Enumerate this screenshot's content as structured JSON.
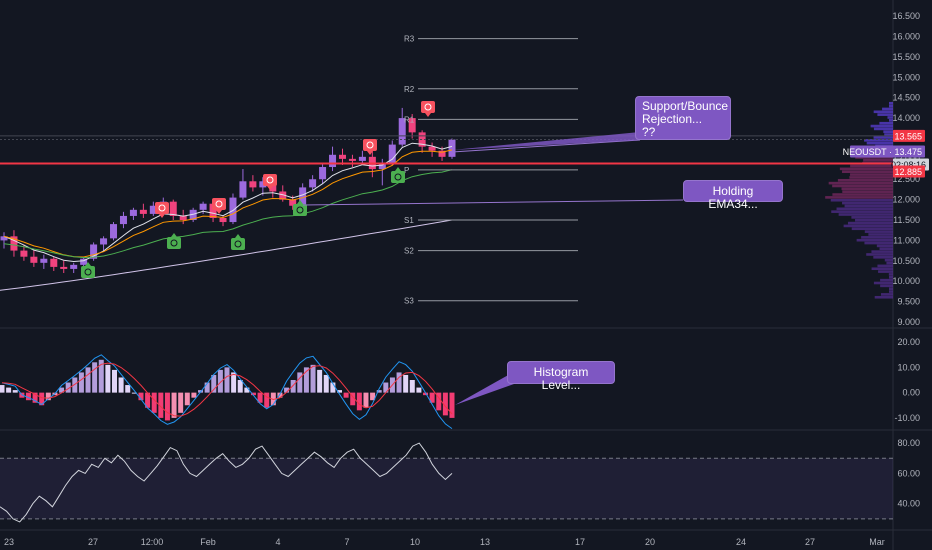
{
  "chart_data": {
    "type": "candlestick",
    "symbol": "NEOUSDT",
    "price_axis": {
      "ticks": [
        "16.500",
        "16.000",
        "15.500",
        "15.000",
        "14.500",
        "14.000",
        "13.500",
        "13.000",
        "12.500",
        "12.000",
        "11.500",
        "11.000",
        "10.500",
        "10.000",
        "9.500",
        "9.000"
      ],
      "range": [
        8.9,
        16.75
      ]
    },
    "price_labels": {
      "upper": "13.565",
      "symbol_tag": "NEOUSDT · 13.475",
      "countdown": "02:08:16",
      "lower": "12.885"
    },
    "time_axis": {
      "labels": [
        "23",
        "27",
        "12:00",
        "Feb",
        "4",
        "7",
        "10",
        "13",
        "17",
        "20",
        "24",
        "27",
        "Mar"
      ]
    },
    "pivot_levels": [
      {
        "label": "R3",
        "value": 15.95
      },
      {
        "label": "R2",
        "value": 14.72
      },
      {
        "label": "R1",
        "value": 13.97
      },
      {
        "label": "P",
        "value": 12.73
      },
      {
        "label": "S1",
        "value": 11.5
      },
      {
        "label": "S2",
        "value": 10.75
      },
      {
        "label": "S3",
        "value": 9.52
      }
    ],
    "support_line": 12.885,
    "resistance_line": 13.565,
    "candles": [
      {
        "o": 11.0,
        "h": 11.2,
        "l": 10.8,
        "c": 11.1
      },
      {
        "o": 11.1,
        "h": 11.25,
        "l": 10.6,
        "c": 10.75
      },
      {
        "o": 10.75,
        "h": 10.9,
        "l": 10.5,
        "c": 10.6
      },
      {
        "o": 10.6,
        "h": 10.75,
        "l": 10.35,
        "c": 10.45
      },
      {
        "o": 10.45,
        "h": 10.65,
        "l": 10.3,
        "c": 10.55
      },
      {
        "o": 10.55,
        "h": 10.6,
        "l": 10.25,
        "c": 10.35
      },
      {
        "o": 10.35,
        "h": 10.5,
        "l": 10.2,
        "c": 10.3
      },
      {
        "o": 10.3,
        "h": 10.45,
        "l": 10.2,
        "c": 10.4
      },
      {
        "o": 10.4,
        "h": 10.6,
        "l": 10.35,
        "c": 10.55
      },
      {
        "o": 10.55,
        "h": 10.95,
        "l": 10.5,
        "c": 10.9
      },
      {
        "o": 10.9,
        "h": 11.1,
        "l": 10.75,
        "c": 11.05
      },
      {
        "o": 11.05,
        "h": 11.45,
        "l": 11.0,
        "c": 11.4
      },
      {
        "o": 11.4,
        "h": 11.7,
        "l": 11.3,
        "c": 11.6
      },
      {
        "o": 11.6,
        "h": 11.8,
        "l": 11.5,
        "c": 11.75
      },
      {
        "o": 11.75,
        "h": 11.9,
        "l": 11.55,
        "c": 11.65
      },
      {
        "o": 11.65,
        "h": 11.95,
        "l": 11.6,
        "c": 11.85
      },
      {
        "o": 11.85,
        "h": 12.05,
        "l": 11.75,
        "c": 11.95
      },
      {
        "o": 11.95,
        "h": 12.0,
        "l": 11.5,
        "c": 11.6
      },
      {
        "o": 11.6,
        "h": 11.75,
        "l": 11.4,
        "c": 11.5
      },
      {
        "o": 11.5,
        "h": 11.8,
        "l": 11.45,
        "c": 11.75
      },
      {
        "o": 11.75,
        "h": 11.95,
        "l": 11.65,
        "c": 11.9
      },
      {
        "o": 11.9,
        "h": 11.95,
        "l": 11.45,
        "c": 11.55
      },
      {
        "o": 11.55,
        "h": 11.6,
        "l": 11.35,
        "c": 11.45
      },
      {
        "o": 11.45,
        "h": 12.15,
        "l": 11.4,
        "c": 12.05
      },
      {
        "o": 12.05,
        "h": 12.75,
        "l": 12.0,
        "c": 12.45
      },
      {
        "o": 12.45,
        "h": 12.6,
        "l": 12.2,
        "c": 12.3
      },
      {
        "o": 12.3,
        "h": 12.55,
        "l": 12.1,
        "c": 12.45
      },
      {
        "o": 12.45,
        "h": 12.55,
        "l": 12.05,
        "c": 12.2
      },
      {
        "o": 12.2,
        "h": 12.35,
        "l": 11.95,
        "c": 12.0
      },
      {
        "o": 12.0,
        "h": 12.1,
        "l": 11.75,
        "c": 11.85
      },
      {
        "o": 11.85,
        "h": 12.4,
        "l": 11.8,
        "c": 12.3
      },
      {
        "o": 12.3,
        "h": 12.6,
        "l": 12.2,
        "c": 12.5
      },
      {
        "o": 12.5,
        "h": 12.9,
        "l": 12.4,
        "c": 12.8
      },
      {
        "o": 12.8,
        "h": 13.3,
        "l": 12.7,
        "c": 13.1
      },
      {
        "o": 13.1,
        "h": 13.25,
        "l": 12.85,
        "c": 13.0
      },
      {
        "o": 13.0,
        "h": 13.1,
        "l": 12.8,
        "c": 12.95
      },
      {
        "o": 12.95,
        "h": 13.2,
        "l": 12.85,
        "c": 13.05
      },
      {
        "o": 13.05,
        "h": 13.2,
        "l": 12.55,
        "c": 12.75
      },
      {
        "o": 12.75,
        "h": 13.0,
        "l": 12.35,
        "c": 12.9
      },
      {
        "o": 12.9,
        "h": 13.45,
        "l": 12.85,
        "c": 13.35
      },
      {
        "o": 13.35,
        "h": 14.25,
        "l": 13.3,
        "c": 14.0
      },
      {
        "o": 14.0,
        "h": 14.1,
        "l": 13.5,
        "c": 13.65
      },
      {
        "o": 13.65,
        "h": 13.7,
        "l": 13.15,
        "c": 13.3
      },
      {
        "o": 13.3,
        "h": 13.4,
        "l": 13.05,
        "c": 13.2
      },
      {
        "o": 13.2,
        "h": 13.3,
        "l": 12.95,
        "c": 13.05
      },
      {
        "o": 13.05,
        "h": 13.5,
        "l": 13.0,
        "c": 13.475
      }
    ],
    "sell_signals": [
      162,
      219,
      270,
      370,
      428
    ],
    "buy_signals": [
      88,
      174,
      238,
      300,
      398
    ],
    "macd": {
      "axis_ticks": [
        "20.00",
        "10.00",
        "0.00",
        "-10.00"
      ],
      "range": [
        -14,
        24
      ],
      "histogram": [
        3,
        2,
        1,
        -2,
        -3,
        -4,
        -5,
        -3,
        -1,
        2,
        4,
        6,
        8,
        10,
        12,
        13,
        11,
        9,
        6,
        3,
        0,
        -3,
        -6,
        -8,
        -10,
        -11,
        -10,
        -8,
        -5,
        -2,
        1,
        4,
        7,
        9,
        10,
        8,
        5,
        2,
        -1,
        -4,
        -6,
        -5,
        -2,
        2,
        5,
        8,
        10,
        11,
        9,
        7,
        4,
        1,
        -2,
        -5,
        -7,
        -6,
        -3,
        1,
        4,
        6,
        8,
        7,
        5,
        2,
        -1,
        -4,
        -7,
        -9,
        -10
      ]
    },
    "rsi": {
      "axis_ticks": [
        "80.00",
        "60.00",
        "40.00"
      ],
      "range": [
        24,
        86
      ],
      "band": [
        70,
        30
      ],
      "values": [
        38,
        35,
        30,
        28,
        33,
        40,
        45,
        42,
        38,
        45,
        52,
        58,
        62,
        60,
        66,
        64,
        70,
        67,
        72,
        68,
        62,
        58,
        55,
        60,
        65,
        71,
        77,
        75,
        66,
        60,
        58,
        62,
        66,
        70,
        73,
        68,
        64,
        66,
        70,
        76,
        78,
        72,
        66,
        60,
        58,
        62,
        66,
        70,
        74,
        71,
        67,
        64,
        70,
        74,
        76,
        70,
        66,
        62,
        58,
        60,
        64,
        68,
        72,
        78,
        80,
        74,
        66,
        60,
        56,
        60
      ]
    }
  },
  "annotations": [
    {
      "text": "Support/Bounce\nRejection...\n??"
    },
    {
      "text": "Holding EMA34..."
    },
    {
      "text": "Histogram Level..."
    }
  ]
}
